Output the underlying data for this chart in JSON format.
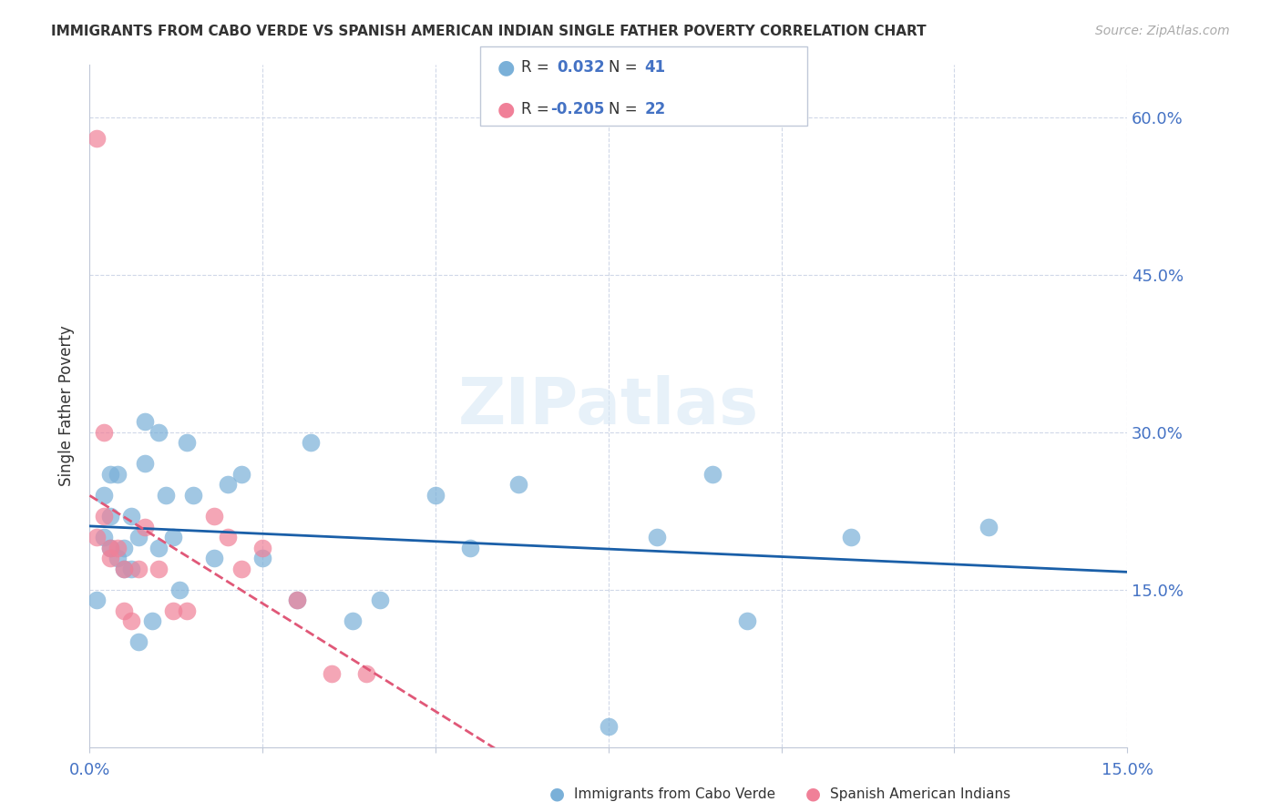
{
  "title": "IMMIGRANTS FROM CABO VERDE VS SPANISH AMERICAN INDIAN SINGLE FATHER POVERTY CORRELATION CHART",
  "source": "Source: ZipAtlas.com",
  "ylabel": "Single Father Poverty",
  "y_ticks": [
    0.0,
    0.15,
    0.3,
    0.45,
    0.6
  ],
  "y_tick_labels": [
    "",
    "15.0%",
    "30.0%",
    "45.0%",
    "60.0%"
  ],
  "x_range": [
    0.0,
    0.15
  ],
  "y_range": [
    0.0,
    0.65
  ],
  "cabo_verde_color": "#7ab0d8",
  "spanish_ai_color": "#f08098",
  "regression_cabo_color": "#1a5fa8",
  "regression_spanish_color": "#e05878",
  "watermark": "ZIPatlas",
  "cabo_verde_R": 0.032,
  "cabo_verde_N": 41,
  "spanish_ai_R": -0.205,
  "spanish_ai_N": 22,
  "cabo_verde_x": [
    0.001,
    0.002,
    0.002,
    0.003,
    0.003,
    0.003,
    0.004,
    0.004,
    0.005,
    0.005,
    0.006,
    0.006,
    0.007,
    0.007,
    0.008,
    0.008,
    0.009,
    0.01,
    0.01,
    0.011,
    0.012,
    0.013,
    0.014,
    0.015,
    0.018,
    0.02,
    0.022,
    0.025,
    0.03,
    0.032,
    0.038,
    0.042,
    0.05,
    0.055,
    0.062,
    0.075,
    0.082,
    0.09,
    0.095,
    0.11,
    0.13
  ],
  "cabo_verde_y": [
    0.14,
    0.2,
    0.24,
    0.26,
    0.22,
    0.19,
    0.26,
    0.18,
    0.19,
    0.17,
    0.22,
    0.17,
    0.2,
    0.1,
    0.31,
    0.27,
    0.12,
    0.3,
    0.19,
    0.24,
    0.2,
    0.15,
    0.29,
    0.24,
    0.18,
    0.25,
    0.26,
    0.18,
    0.14,
    0.29,
    0.12,
    0.14,
    0.24,
    0.19,
    0.25,
    0.02,
    0.2,
    0.26,
    0.12,
    0.2,
    0.21
  ],
  "spanish_ai_x": [
    0.001,
    0.001,
    0.002,
    0.002,
    0.003,
    0.003,
    0.004,
    0.005,
    0.005,
    0.006,
    0.007,
    0.008,
    0.01,
    0.012,
    0.014,
    0.018,
    0.02,
    0.022,
    0.025,
    0.03,
    0.035,
    0.04
  ],
  "spanish_ai_y": [
    0.58,
    0.2,
    0.3,
    0.22,
    0.19,
    0.18,
    0.19,
    0.13,
    0.17,
    0.12,
    0.17,
    0.21,
    0.17,
    0.13,
    0.13,
    0.22,
    0.2,
    0.17,
    0.19,
    0.14,
    0.07,
    0.07
  ]
}
